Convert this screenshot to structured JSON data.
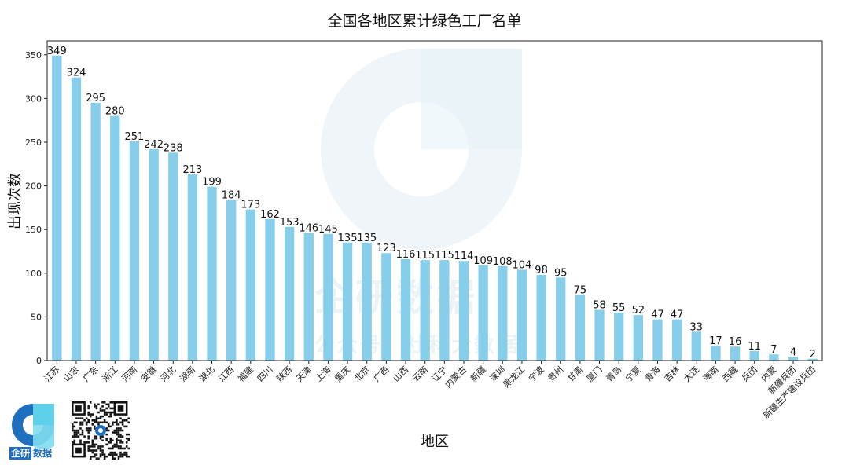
{
  "chart_data": {
    "type": "bar",
    "title": "全国各地区累计绿色工厂名单",
    "xlabel": "地区",
    "ylabel": "出现次数",
    "ylim": [
      0,
      366
    ],
    "yticks": [
      0,
      50,
      100,
      150,
      200,
      250,
      300,
      350
    ],
    "bar_color": "#87ceeb",
    "categories": [
      "江苏",
      "山东",
      "广东",
      "浙江",
      "河南",
      "安徽",
      "河北",
      "湖南",
      "湖北",
      "江西",
      "福建",
      "四川",
      "陕西",
      "天津",
      "上海",
      "重庆",
      "北京",
      "广西",
      "山西",
      "云南",
      "辽宁",
      "内蒙古",
      "新疆",
      "深圳",
      "黑龙江",
      "宁波",
      "贵州",
      "甘肃",
      "厦门",
      "青岛",
      "宁夏",
      "青海",
      "吉林",
      "大连",
      "海南",
      "西藏",
      "兵团",
      "内蒙",
      "新疆兵团",
      "新疆生产建设兵团"
    ],
    "values": [
      349,
      324,
      295,
      280,
      251,
      242,
      238,
      213,
      199,
      184,
      173,
      162,
      153,
      146,
      145,
      135,
      135,
      123,
      116,
      115,
      115,
      114,
      109,
      108,
      104,
      98,
      95,
      75,
      58,
      55,
      52,
      47,
      47,
      33,
      17,
      16,
      11,
      7,
      4,
      2
    ],
    "grid": false,
    "legend": "none"
  },
  "watermark": {
    "line1": "企研数据",
    "line2": "公众号：社科大数据"
  },
  "brand": {
    "part1": "企研",
    "part2": "数据",
    "color": "#1f6fbf"
  }
}
